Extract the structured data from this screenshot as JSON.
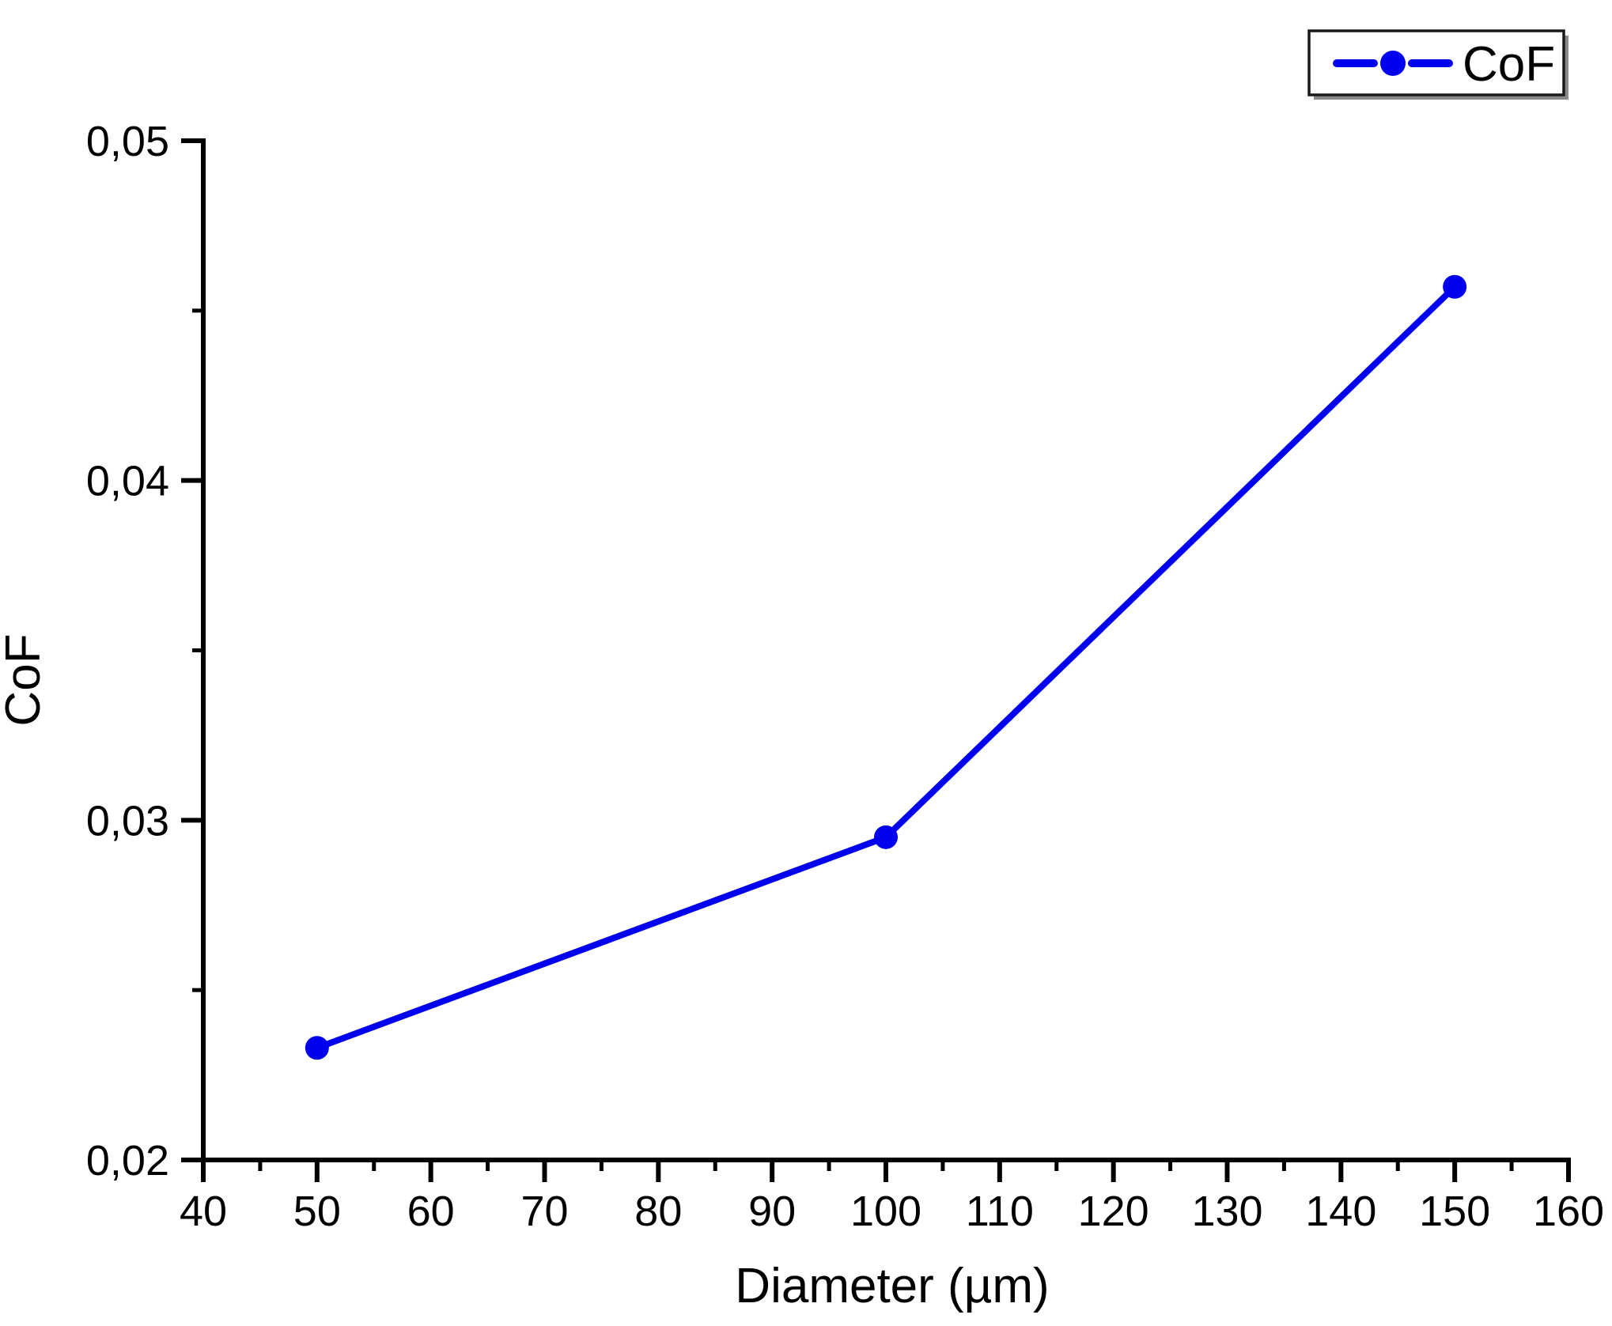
{
  "chart_data": {
    "type": "line",
    "xlabel": "Diameter (µm)",
    "ylabel": "CoF",
    "xlim": [
      40,
      160
    ],
    "ylim": [
      0.02,
      0.05
    ],
    "x_major_tick_step": 10,
    "x_minor_tick_step": 5,
    "y_major_tick_step": 0.01,
    "y_minor_tick_step": 0.005,
    "x_tick_labels": [
      "40",
      "50",
      "60",
      "70",
      "80",
      "90",
      "100",
      "110",
      "120",
      "130",
      "140",
      "150",
      "160"
    ],
    "y_tick_labels": [
      "0,02",
      "0,03",
      "0,04",
      "0,05"
    ],
    "decimal_separator": ",",
    "grid": false,
    "legend": {
      "position": "top-right",
      "entries": [
        {
          "label": "CoF",
          "line_style": "dash-dot-dash",
          "marker": "circle",
          "color": "#0000EE"
        }
      ]
    },
    "series": [
      {
        "name": "CoF",
        "color": "#0000EE",
        "marker": "circle",
        "line": "solid",
        "x": [
          50,
          100,
          150
        ],
        "y": [
          0.0233,
          0.0295,
          0.0457
        ]
      }
    ]
  },
  "colors": {
    "series_blue": "#0000EE",
    "axis": "#000000",
    "text": "#000000",
    "background": "#FFFFFF",
    "legend_border": "#1A1A1A",
    "legend_shadow": "#8A8A8A"
  }
}
